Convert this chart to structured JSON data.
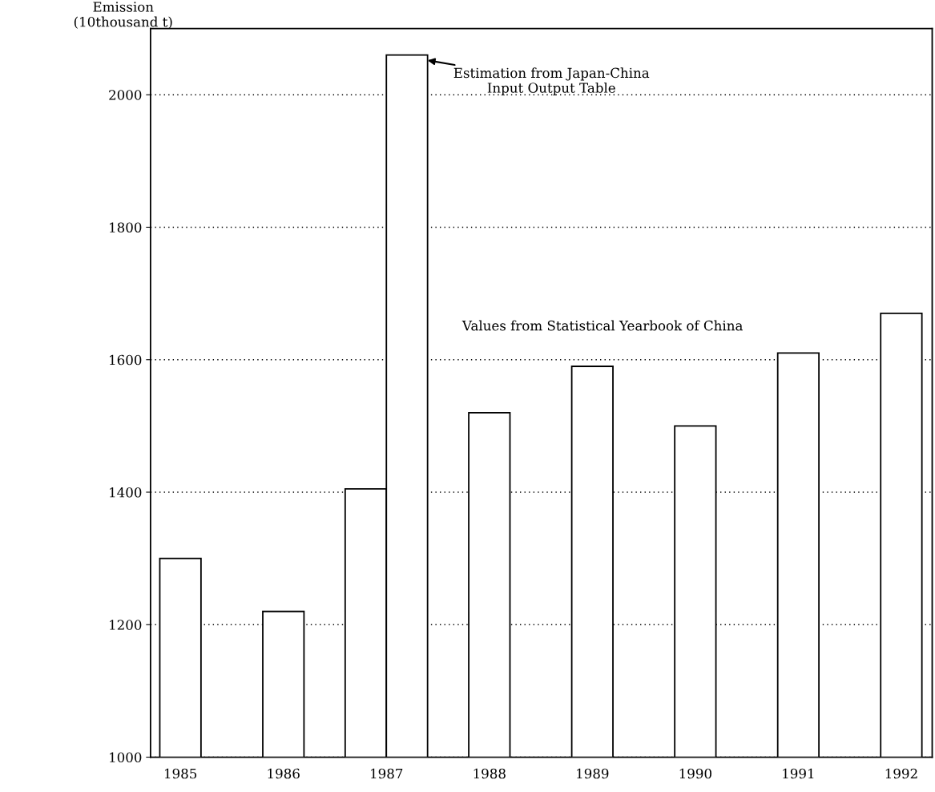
{
  "chart_data": {
    "type": "bar",
    "ylabel": "Emission\n(10thousand t)",
    "categories": [
      "1985",
      "1986",
      "1987",
      "1988",
      "1989",
      "1990",
      "1991",
      "1992"
    ],
    "series": [
      {
        "color": "#ffffff",
        "values": [
          1300,
          1220,
          1405,
          1520,
          1590,
          1500,
          1610,
          1670
        ]
      },
      {
        "color": "#ffffff",
        "values": [
          null,
          null,
          2060,
          null,
          null,
          null,
          null,
          null
        ]
      }
    ],
    "annotations": [
      "Estimation from Japan-China\nInput Output Table",
      "Values from Statistical Yearbook of China"
    ],
    "ylim": [
      1000,
      2100
    ],
    "yticks": [
      1000,
      1200,
      1400,
      1600,
      1800,
      2000
    ],
    "grid": "y",
    "legend": false
  }
}
